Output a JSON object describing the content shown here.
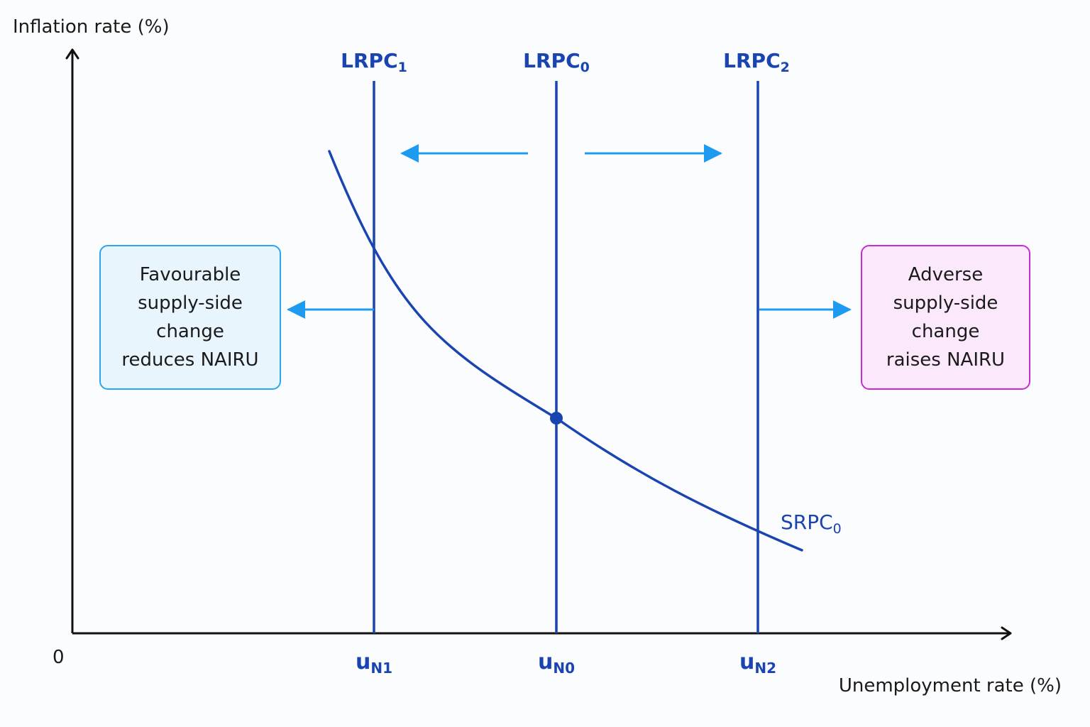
{
  "axes": {
    "y_title": "Inflation rate (%)",
    "x_title": "Unemployment rate (%)",
    "origin": "0"
  },
  "curves": {
    "lrpc": [
      {
        "base": "LRPC",
        "sub": "1"
      },
      {
        "base": "LRPC",
        "sub": "0"
      },
      {
        "base": "LRPC",
        "sub": "2"
      }
    ],
    "srpc": {
      "base": "SRPC",
      "sub": "0"
    }
  },
  "nairu_ticks": [
    {
      "base": "u",
      "sub": "N1"
    },
    {
      "base": "u",
      "sub": "N0"
    },
    {
      "base": "u",
      "sub": "N2"
    }
  ],
  "notes": {
    "favourable": [
      "Favourable",
      "supply-side",
      "change",
      "reduces NAIRU"
    ],
    "adverse": [
      "Adverse",
      "supply-side",
      "change",
      "raises NAIRU"
    ]
  },
  "colors": {
    "curve_blue": "#1a44b0",
    "arrow_blue": "#1e9bf0",
    "favourable_border": "#29a6ee",
    "favourable_fill": "#e9f5fd",
    "adverse_border": "#c72bd1",
    "adverse_fill": "#fbe9fb",
    "axis": "#111111"
  }
}
